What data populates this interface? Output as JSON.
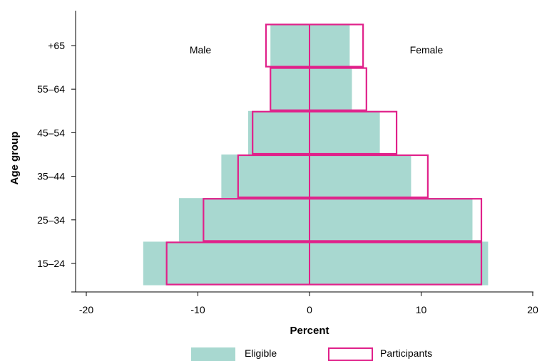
{
  "chart_data": {
    "type": "bar",
    "orientation": "horizontal",
    "categories": [
      "15–24",
      "25–34",
      "35–44",
      "45–54",
      "55–64",
      "+65"
    ],
    "series": [
      {
        "name": "Eligible",
        "style": "filled",
        "color": "#a8d8d0",
        "male": [
          -14.9,
          -11.7,
          -7.9,
          -5.5,
          -3.5,
          -3.5
        ],
        "female": [
          16.0,
          14.6,
          9.1,
          6.3,
          3.8,
          3.6
        ]
      },
      {
        "name": "Participants",
        "style": "outline",
        "color": "#e0218a",
        "male": [
          -12.8,
          -9.5,
          -6.4,
          -5.1,
          -3.5,
          -3.9
        ],
        "female": [
          15.4,
          15.4,
          10.6,
          7.8,
          5.1,
          4.8
        ]
      }
    ],
    "xlabel": "Percent",
    "ylabel": "Age group",
    "xlim": [
      -20,
      20
    ],
    "xticks": [
      -20,
      -10,
      0,
      10,
      20
    ],
    "annotations": {
      "left": "Male",
      "right": "Female"
    },
    "legend_position": "bottom",
    "grid": false
  }
}
